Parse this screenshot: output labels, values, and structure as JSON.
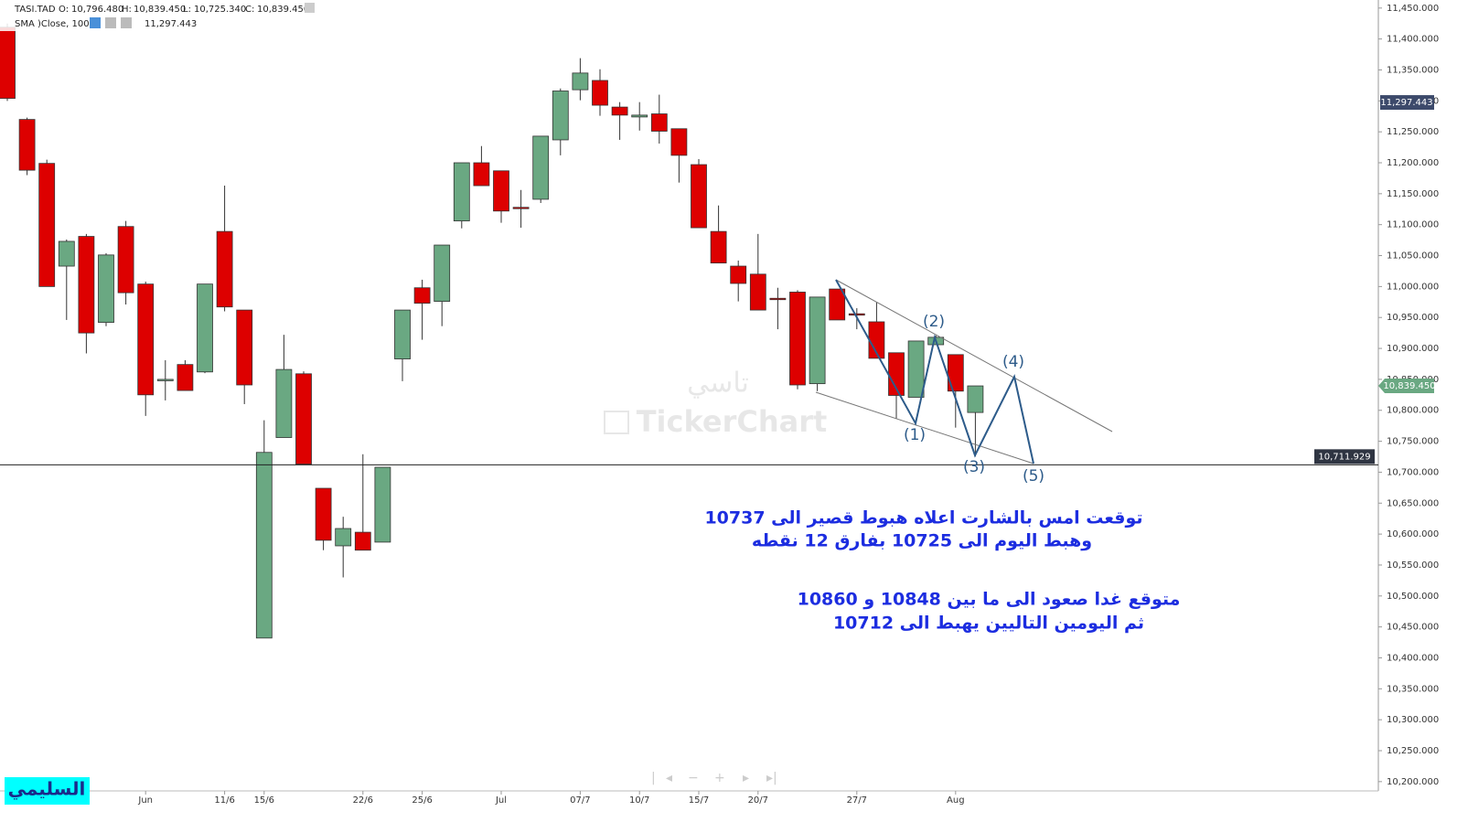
{
  "chart_data": {
    "type": "candlestick",
    "header": {
      "symbol": "TASI.TAD",
      "o_key": "O:",
      "o": "10,796.480",
      "h_key": "H:",
      "h": "10,839.450",
      "l_key": "L:",
      "l": "10,725.340",
      "c_key": "C:",
      "c": "10,839.450",
      "sma_name": "SMA )Close, 100(",
      "sma_value": "11,297.443"
    },
    "categories": [
      null,
      null,
      null,
      null,
      null,
      null,
      null,
      "Jun",
      null,
      null,
      null,
      "11/6",
      null,
      "15/6",
      null,
      null,
      null,
      null,
      "22/6",
      null,
      null,
      "25/6",
      null,
      null,
      null,
      "Jul",
      null,
      null,
      null,
      "07/7",
      null,
      null,
      "10/7",
      null,
      null,
      "15/7",
      null,
      null,
      "20/7",
      null,
      null,
      null,
      null,
      "27/7",
      null,
      null,
      null,
      null,
      "Aug",
      null
    ],
    "open": [
      11419,
      11270,
      11199,
      11033,
      11081,
      10942,
      11097,
      11004,
      10848,
      10874,
      10862,
      11089,
      10962,
      10432,
      10756,
      10859,
      10674,
      10581,
      10603,
      10587,
      10883,
      10998,
      10976,
      11106,
      11200,
      11187,
      11128,
      11141,
      11237,
      11318,
      11333,
      11290,
      11274,
      11279,
      11255,
      11197,
      11089,
      11033,
      11020,
      10981,
      10991,
      10843,
      10996,
      10956,
      10943,
      10893,
      10821,
      10906,
      10890,
      10796.48
    ],
    "high": [
      11425,
      11273,
      11205,
      11076,
      11085,
      11054,
      11106,
      11008,
      10881,
      10881,
      11004,
      11163,
      10962,
      10784,
      10922,
      10863,
      10674,
      10628,
      10729,
      10708,
      10962,
      11011,
      11067,
      11200,
      11227,
      11187,
      11156,
      11243,
      11320,
      11369,
      11351,
      11298,
      11298,
      11310,
      11255,
      11206,
      11131,
      11042,
      11085,
      10998,
      10994,
      10983,
      10996,
      10965,
      10974,
      10893,
      10912,
      10921,
      10890,
      10839.45
    ],
    "low": [
      11300,
      11180,
      11000,
      10946,
      10892,
      10936,
      10971,
      10791,
      10816,
      10832,
      10860,
      10960,
      10810,
      10432,
      10756,
      10713,
      10574,
      10530,
      10574,
      10587,
      10847,
      10914,
      10936,
      11094,
      11163,
      11103,
      11095,
      11135,
      11212,
      11301,
      11276,
      11237,
      11252,
      11231,
      11168,
      11095,
      11038,
      10976,
      10962,
      10931,
      10834,
      10831,
      10946,
      10931,
      10884,
      10787,
      10821,
      10906,
      10772,
      10725.34
    ],
    "close": [
      11304,
      11188,
      11000,
      11073,
      10925,
      11051,
      10990,
      10825,
      10850,
      10832,
      11004,
      10967,
      10841,
      10732,
      10866,
      10713,
      10590,
      10609,
      10574,
      10708,
      10962,
      10973,
      11067,
      11200,
      11163,
      11122,
      11127,
      11243,
      11316,
      11345,
      11293,
      11277,
      11277,
      11251,
      11212,
      11095,
      11038,
      11005,
      10962,
      10980,
      10841,
      10983,
      10946,
      10955,
      10884,
      10824,
      10912,
      10918,
      10831,
      10839.45
    ],
    "up_color": "#6aa882",
    "down_color": "#dd0000",
    "ylim": [
      10185,
      11463
    ],
    "yticks": [
      {
        "value": 11450,
        "label": "11,450.000"
      },
      {
        "value": 11400,
        "label": "11,400.000"
      },
      {
        "value": 11350,
        "label": "11,350.000"
      },
      {
        "value": 11300,
        "label": "11,300.000"
      },
      {
        "value": 11250,
        "label": "11,250.000"
      },
      {
        "value": 11200,
        "label": "11,200.000"
      },
      {
        "value": 11150,
        "label": "11,150.000"
      },
      {
        "value": 11100,
        "label": "11,100.000"
      },
      {
        "value": 11050,
        "label": "11,050.000"
      },
      {
        "value": 11000,
        "label": "11,000.000"
      },
      {
        "value": 10950,
        "label": "10,950.000"
      },
      {
        "value": 10900,
        "label": "10,900.000"
      },
      {
        "value": 10850,
        "label": "10,850.000"
      },
      {
        "value": 10800,
        "label": "10,800.000"
      },
      {
        "value": 10750,
        "label": "10,750.000"
      },
      {
        "value": 10700,
        "label": "10,700.000"
      },
      {
        "value": 10650,
        "label": "10,650.000"
      },
      {
        "value": 10600,
        "label": "10,600.000"
      },
      {
        "value": 10550,
        "label": "10,550.000"
      },
      {
        "value": 10500,
        "label": "10,500.000"
      },
      {
        "value": 10450,
        "label": "10,450.000"
      },
      {
        "value": 10400,
        "label": "10,400.000"
      },
      {
        "value": 10350,
        "label": "10,350.000"
      },
      {
        "value": 10300,
        "label": "10,300.000"
      },
      {
        "value": 10250,
        "label": "10,250.000"
      },
      {
        "value": 10200,
        "label": "10,200.000"
      }
    ],
    "sma_marker": {
      "value": 11297.443,
      "label": "11,297.443"
    },
    "last_price": {
      "value": 10839.45,
      "label": "10,839.450"
    },
    "hline": {
      "value": 10711.929,
      "label": "10,711.929"
    },
    "waves": [
      "(1)",
      "(2)",
      "(3)",
      "(4)",
      "(5)"
    ],
    "annotations": [
      "توقعت امس بالشارت اعلاه هبوط قصير الى 10737",
      "وهبط اليوم  الى 10725 بفارق 12 نقطه",
      "متوقع غدا صعود الى ما بين 10848 و 10860",
      "ثم اليومين التاليين  يهبط الى 10712"
    ],
    "watermark": [
      "تاسي",
      "TickerChart"
    ],
    "logo": "السليمي"
  }
}
